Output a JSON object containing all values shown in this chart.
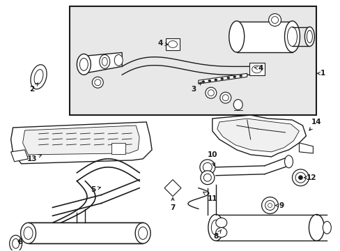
{
  "bg_color": "#ffffff",
  "box_bg": "#e8e8e8",
  "lc": "#1a1a1a",
  "fig_width": 4.89,
  "fig_height": 3.6,
  "dpi": 100
}
